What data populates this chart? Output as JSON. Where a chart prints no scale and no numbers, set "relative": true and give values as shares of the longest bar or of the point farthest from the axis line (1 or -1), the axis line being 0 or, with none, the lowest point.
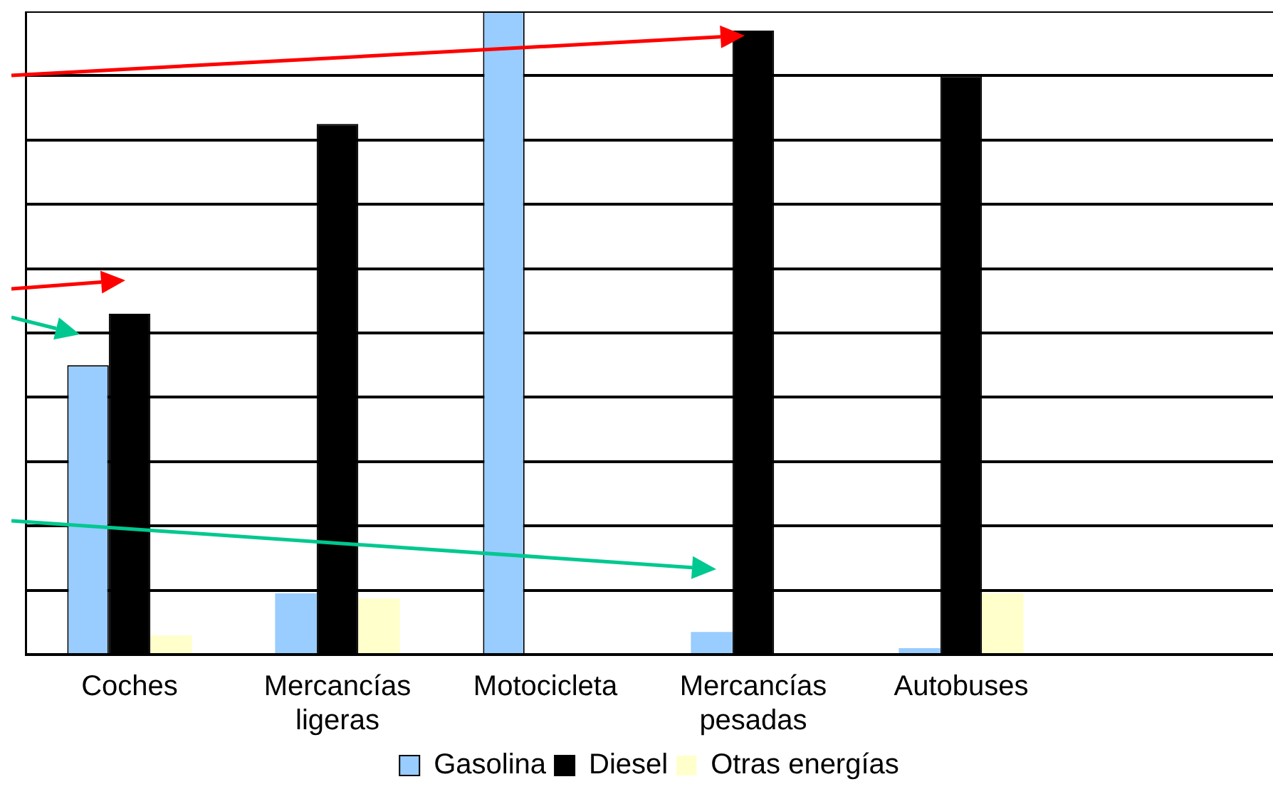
{
  "chart_data": {
    "type": "bar",
    "relative": true,
    "grid": "y",
    "legend": "bottom",
    "categories": [
      "Coches",
      "Mercancías ligeras",
      "Motocicleta",
      "Mercancías pesadas",
      "Autobuses",
      null
    ],
    "series": [
      {
        "name": "Gasolina",
        "color": "#99ccff",
        "values": [
          0.45,
          0.095,
          1,
          0.035,
          0.01,
          null
        ]
      },
      {
        "name": "Diesel",
        "color": "#000000",
        "values": [
          0.53,
          0.825,
          null,
          0.97,
          0.9,
          null
        ]
      },
      {
        "name": "Otras energías",
        "color": "#ffffcc",
        "values": [
          0.03,
          0.087,
          null,
          null,
          0.095,
          null
        ]
      }
    ]
  }
}
